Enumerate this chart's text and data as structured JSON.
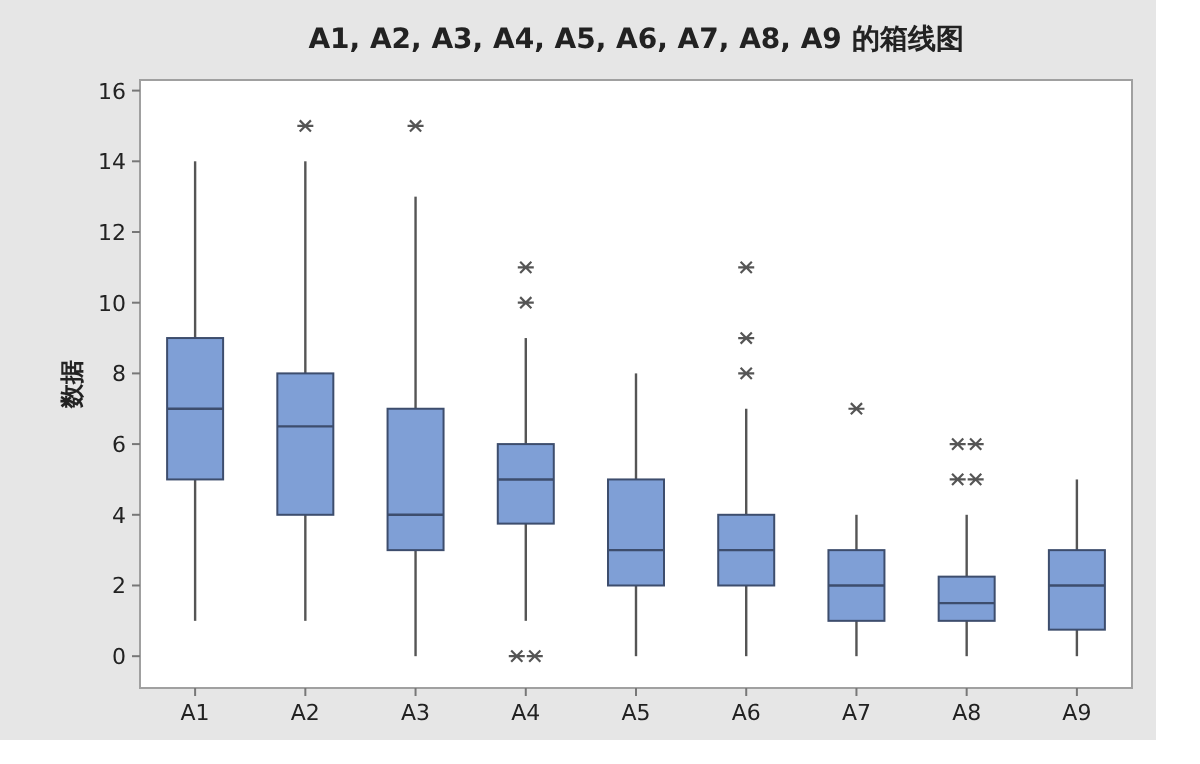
{
  "chart_data": {
    "type": "box",
    "title": "A1, A2, A3, A4, A5, A6, A7, A8, A9 的箱线图",
    "ylabel": "数据",
    "categories": [
      "A1",
      "A2",
      "A3",
      "A4",
      "A5",
      "A6",
      "A7",
      "A8",
      "A9"
    ],
    "color": "#7f9fd6",
    "boxes": [
      {
        "low": 1,
        "q1": 5,
        "median": 7,
        "q3": 9,
        "high": 14
      },
      {
        "low": 1,
        "q1": 4,
        "median": 6.5,
        "q3": 8,
        "high": 14,
        "outliers": [
          15
        ]
      },
      {
        "low": 0,
        "q1": 3,
        "median": 4,
        "q3": 7,
        "high": 13,
        "outliers": [
          15
        ]
      },
      {
        "low": 1,
        "q1": 3.75,
        "median": 5,
        "q3": 6,
        "high": 9,
        "outliers": [
          10,
          11,
          0,
          0
        ]
      },
      {
        "low": 0,
        "q1": 2,
        "median": 3,
        "q3": 5,
        "high": 8
      },
      {
        "low": 0,
        "q1": 2,
        "median": 3,
        "q3": 4,
        "high": 7,
        "outliers": [
          8,
          9,
          11
        ]
      },
      {
        "low": 0,
        "q1": 1,
        "median": 2,
        "q3": 3,
        "high": 4,
        "outliers": [
          7
        ]
      },
      {
        "low": 0,
        "q1": 1,
        "median": 1.5,
        "q3": 2.25,
        "high": 4,
        "outliers": [
          5,
          5,
          6,
          6
        ]
      },
      {
        "low": 0,
        "q1": 0.75,
        "median": 2,
        "q3": 3,
        "high": 5
      }
    ],
    "ylim": [
      -0.9,
      16.3
    ],
    "yticks": [
      0,
      2,
      4,
      6,
      8,
      10,
      12,
      14,
      16
    ],
    "grid": false
  }
}
